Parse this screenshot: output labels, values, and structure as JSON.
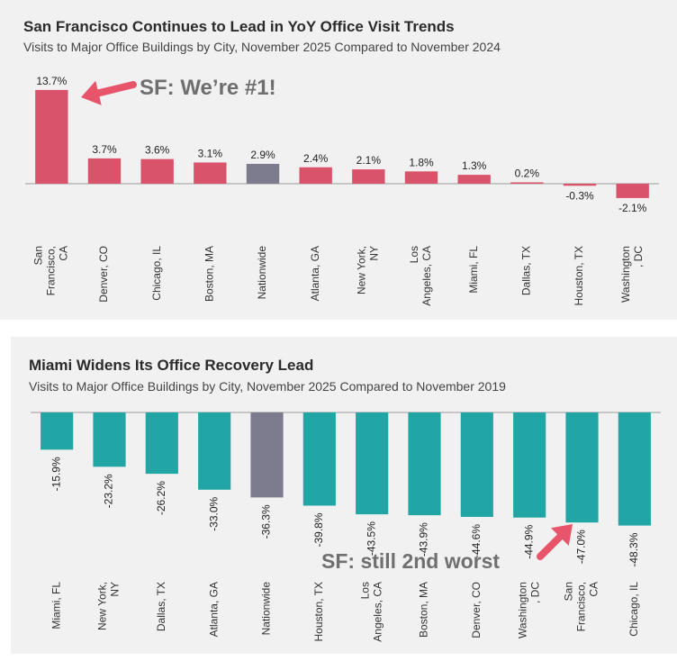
{
  "chart_data": [
    {
      "type": "bar",
      "title": "San Francisco Continues to Lead in YoY Office Visit Trends",
      "subtitle": "Visits to Major Office Buildings by City, November 2025 Compared to November 2024",
      "categories": [
        "San Francisco, CA",
        "Denver, CO",
        "Chicago, IL",
        "Boston, MA",
        "Nationwide",
        "Atlanta, GA",
        "New York, NY",
        "Los Angeles, CA",
        "Miami, FL",
        "Dallas, TX",
        "Houston, TX",
        "Washington, DC"
      ],
      "category_lines": [
        [
          "San",
          "Francisco,",
          "CA"
        ],
        [
          "Denver, CO"
        ],
        [
          "Chicago, IL"
        ],
        [
          "Boston, MA"
        ],
        [
          "Nationwide"
        ],
        [
          "Atlanta, GA"
        ],
        [
          "New York,",
          "NY"
        ],
        [
          "Los",
          "Angeles, CA"
        ],
        [
          "Miami, FL"
        ],
        [
          "Dallas, TX"
        ],
        [
          "Houston, TX"
        ],
        [
          "Washington",
          ", DC"
        ]
      ],
      "values": [
        13.7,
        3.7,
        3.6,
        3.1,
        2.9,
        2.4,
        2.1,
        1.8,
        1.3,
        0.2,
        -0.3,
        -2.1
      ],
      "value_labels": [
        "13.7%",
        "3.7%",
        "3.6%",
        "3.1%",
        "2.9%",
        "2.4%",
        "2.1%",
        "1.8%",
        "1.3%",
        "0.2%",
        "-0.3%",
        "-2.1%"
      ],
      "highlight": "Nationwide",
      "xlabel": "",
      "ylabel": "",
      "ylim": [
        -3,
        14
      ],
      "colors": {
        "bar": "#d9546b",
        "highlight": "#7c7c8e"
      }
    },
    {
      "type": "bar",
      "title": "Miami Widens Its Office Recovery Lead",
      "subtitle": "Visits to Major Office Buildings by City, November 2025 Compared to November 2019",
      "categories": [
        "Miami, FL",
        "New York, NY",
        "Dallas, TX",
        "Atlanta, GA",
        "Nationwide",
        "Houston, TX",
        "Los Angeles, CA",
        "Boston, MA",
        "Denver, CO",
        "Washington, DC",
        "San Francisco, CA",
        "Chicago, IL"
      ],
      "category_lines": [
        [
          "Miami, FL"
        ],
        [
          "New York,",
          "NY"
        ],
        [
          "Dallas, TX"
        ],
        [
          "Atlanta, GA"
        ],
        [
          "Nationwide"
        ],
        [
          "Houston, TX"
        ],
        [
          "Los",
          "Angeles, CA"
        ],
        [
          "Boston, MA"
        ],
        [
          "Denver, CO"
        ],
        [
          "Washington",
          ", DC"
        ],
        [
          "San",
          "Francisco,",
          "CA"
        ],
        [
          "Chicago, IL"
        ]
      ],
      "values": [
        -15.9,
        -23.2,
        -26.2,
        -33.0,
        -36.3,
        -39.8,
        -43.5,
        -43.9,
        -44.6,
        -44.9,
        -47.0,
        -48.3
      ],
      "value_labels": [
        "-15.9%",
        "-23.2%",
        "-26.2%",
        "-33.0%",
        "-36.3%",
        "-39.8%",
        "-43.5%",
        "-43.9%",
        "-44.6%",
        "-44.9%",
        "-47.0%",
        "-48.3%"
      ],
      "highlight": "Nationwide",
      "xlabel": "",
      "ylabel": "",
      "ylim": [
        -50,
        0
      ],
      "colors": {
        "bar": "#22a6a5",
        "highlight": "#7c7c8e"
      }
    }
  ],
  "annotations": {
    "top": "SF: We’re #1!",
    "bottom": "SF: still 2nd worst"
  },
  "colors": {
    "arrow": "#e8556b",
    "annotation_text": "#6f6f6f"
  }
}
